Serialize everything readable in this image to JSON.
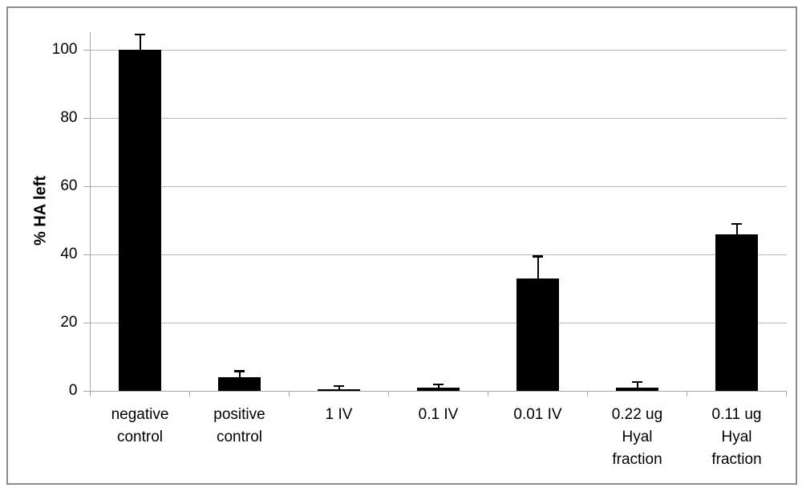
{
  "chart_data": {
    "type": "bar",
    "title": "",
    "xlabel": "",
    "ylabel": "% HA left",
    "categories": [
      "negative control",
      "positive control",
      "1 IV",
      "0.1 IV",
      "0.01 IV",
      "0.22 ug Hyal fraction",
      "0.11 ug Hyal fraction"
    ],
    "category_lines": [
      [
        "negative",
        "control"
      ],
      [
        "positive",
        "control"
      ],
      [
        "1 IV"
      ],
      [
        "0.1 IV"
      ],
      [
        "0.01 IV"
      ],
      [
        "0.22 ug",
        "Hyal",
        "fraction"
      ],
      [
        "0.11 ug",
        "Hyal",
        "fraction"
      ]
    ],
    "series": [
      {
        "name": "% HA left",
        "values": [
          100,
          4,
          0.5,
          1,
          33,
          1,
          46
        ],
        "errors_plus": [
          4.6,
          1.8,
          1.0,
          0.9,
          6.5,
          1.6,
          3.0
        ]
      }
    ],
    "yticks": [
      0,
      20,
      40,
      60,
      80,
      100
    ],
    "ylim": [
      0,
      105.2
    ],
    "grid": true,
    "legend_position": "none",
    "colors": {
      "bar": "#000000",
      "error_bar": "#000000",
      "gridline": "#b9b9b9",
      "axis": "#a6a6a6",
      "text": "#000000",
      "frame_border": "#8c8c8c",
      "background": "#ffffff"
    }
  }
}
